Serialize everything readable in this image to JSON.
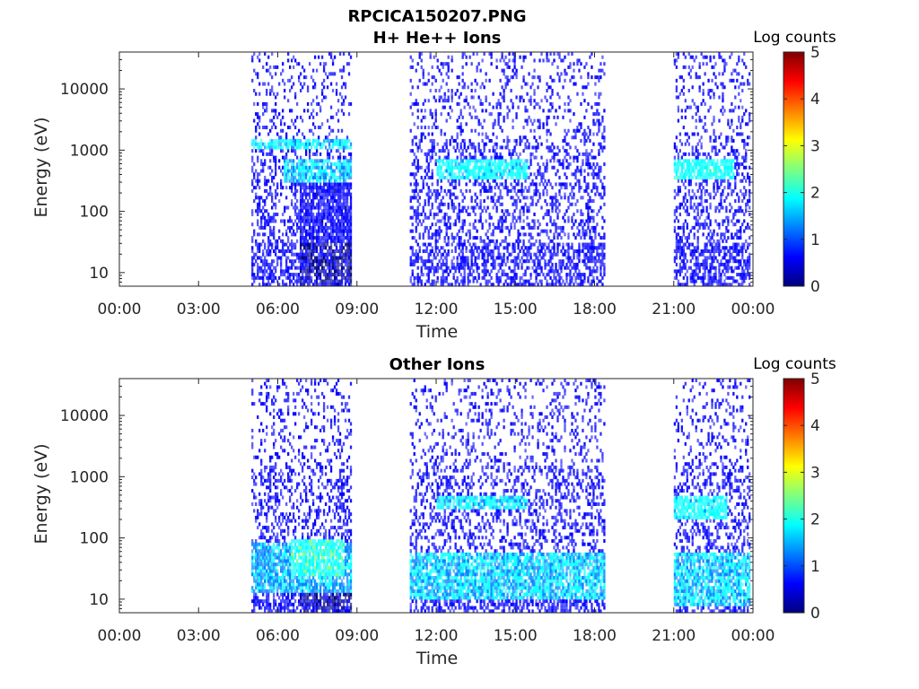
{
  "figure": {
    "filename_title": "RPCICA150207.PNG"
  },
  "colormap": [
    "#00007f",
    "#0000ff",
    "#007fff",
    "#00ffff",
    "#7fff7f",
    "#ffff00",
    "#ff7f00",
    "#ff0000",
    "#7f0000"
  ],
  "chart_data": [
    {
      "type": "heatmap",
      "title": "H+ He++ Ions",
      "xlabel": "Time",
      "ylabel": "Energy (eV)",
      "x_ticks": [
        "00:00",
        "03:00",
        "06:00",
        "09:00",
        "12:00",
        "15:00",
        "18:00",
        "21:00",
        "00:00"
      ],
      "x_range_hours": [
        0,
        24
      ],
      "y_scale": "log",
      "y_range_eV": [
        6,
        40000
      ],
      "y_ticks": [
        10,
        100,
        1000,
        10000
      ],
      "y_tick_labels": [
        "10",
        "100",
        "1000",
        "10000"
      ],
      "colorbar": {
        "label": "Log counts",
        "range": [
          0,
          5
        ],
        "ticks": [
          "0",
          "1",
          "2",
          "3",
          "4",
          "5"
        ]
      },
      "data_intervals_hours": [
        [
          5.0,
          8.8
        ],
        [
          11.0,
          18.4
        ],
        [
          21.0,
          23.9
        ]
      ],
      "features": [
        {
          "t": [
            6.8,
            8.8
          ],
          "E": [
            6,
            30
          ],
          "level": 0.3
        },
        {
          "t": [
            6.8,
            8.8
          ],
          "E": [
            30,
            300
          ],
          "level": 0.6
        },
        {
          "t": [
            6.2,
            8.8
          ],
          "E": [
            300,
            700
          ],
          "level": 1.6
        },
        {
          "t": [
            5.0,
            8.8
          ],
          "E": [
            1100,
            1600
          ],
          "level": 1.7
        },
        {
          "t": [
            12.0,
            15.5
          ],
          "E": [
            350,
            700
          ],
          "level": 1.8
        },
        {
          "t": [
            21.0,
            23.3
          ],
          "E": [
            350,
            700
          ],
          "level": 1.9
        }
      ]
    },
    {
      "type": "heatmap",
      "title": "Other Ions",
      "xlabel": "Time",
      "ylabel": "Energy (eV)",
      "x_ticks": [
        "00:00",
        "03:00",
        "06:00",
        "09:00",
        "12:00",
        "15:00",
        "18:00",
        "21:00",
        "00:00"
      ],
      "x_range_hours": [
        0,
        24
      ],
      "y_scale": "log",
      "y_range_eV": [
        6,
        40000
      ],
      "y_ticks": [
        10,
        100,
        1000,
        10000
      ],
      "y_tick_labels": [
        "10",
        "100",
        "1000",
        "10000"
      ],
      "colorbar": {
        "label": "Log counts",
        "range": [
          0,
          5
        ],
        "ticks": [
          "0",
          "1",
          "2",
          "3",
          "4",
          "5"
        ]
      },
      "data_intervals_hours": [
        [
          5.0,
          8.8
        ],
        [
          11.0,
          18.4
        ],
        [
          21.0,
          23.9
        ]
      ],
      "features": [
        {
          "t": [
            6.5,
            8.5
          ],
          "E": [
            25,
            100
          ],
          "level": 2.0
        },
        {
          "t": [
            5.0,
            8.8
          ],
          "E": [
            12,
            80
          ],
          "level": 1.5
        },
        {
          "t": [
            11.0,
            18.4
          ],
          "E": [
            10,
            60
          ],
          "level": 1.6
        },
        {
          "t": [
            6.8,
            8.8
          ],
          "E": [
            6,
            15
          ],
          "level": 0.3
        },
        {
          "t": [
            12.0,
            15.5
          ],
          "E": [
            300,
            500
          ],
          "level": 1.7
        },
        {
          "t": [
            21.0,
            23.0
          ],
          "E": [
            200,
            500
          ],
          "level": 1.8
        },
        {
          "t": [
            21.0,
            23.9
          ],
          "E": [
            8,
            60
          ],
          "level": 1.6
        }
      ]
    }
  ]
}
